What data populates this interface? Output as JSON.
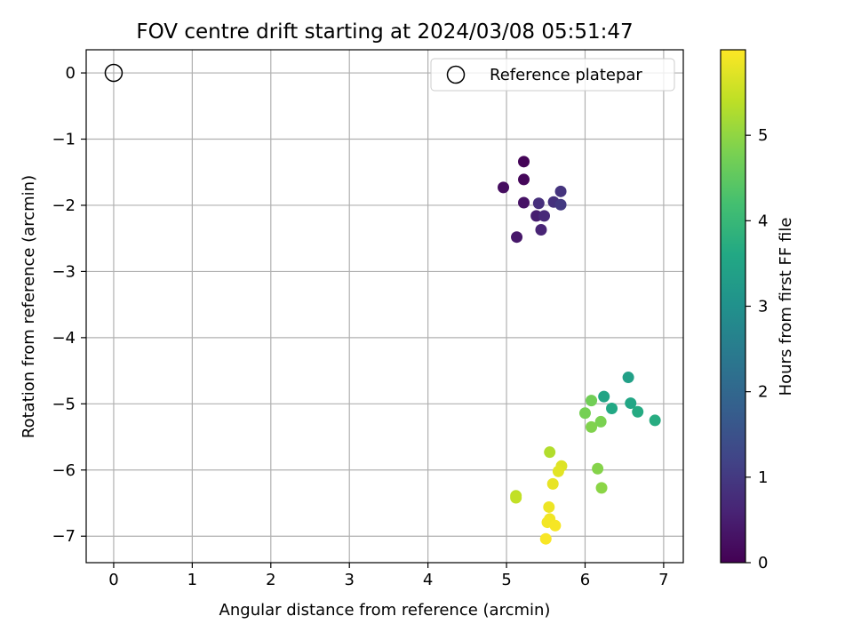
{
  "chart_data": {
    "type": "scatter",
    "title": "FOV centre drift starting at 2024/03/08 05:51:47",
    "xlabel": "Angular distance from reference (arcmin)",
    "ylabel": "Rotation from reference (arcmin)",
    "xlim": [
      -0.35,
      7.25
    ],
    "ylim": [
      -7.4,
      0.35
    ],
    "xticks": [
      0,
      1,
      2,
      3,
      4,
      5,
      6,
      7
    ],
    "yticks": [
      0,
      -1,
      -2,
      -3,
      -4,
      -5,
      -6,
      -7
    ],
    "grid": true,
    "legend": {
      "position": "top-right",
      "entries": [
        "Reference platepar"
      ]
    },
    "reference_point": {
      "name": "Reference platepar",
      "x": 0,
      "y": 0,
      "marker": "open-circle"
    },
    "colorbar": {
      "label": "Hours from first FF file",
      "colormap": "viridis",
      "range": [
        0,
        6.0
      ],
      "ticks": [
        0,
        1,
        2,
        3,
        4,
        5
      ]
    },
    "series": [
      {
        "points": [
          {
            "x": 5.22,
            "y": -1.34,
            "c": 0.05
          },
          {
            "x": 5.22,
            "y": -1.61,
            "c": 0.1
          },
          {
            "x": 4.96,
            "y": -1.73,
            "c": 0.2
          },
          {
            "x": 5.22,
            "y": -1.96,
            "c": 0.3
          },
          {
            "x": 5.13,
            "y": -2.48,
            "c": 0.4
          },
          {
            "x": 5.38,
            "y": -2.16,
            "c": 0.5
          },
          {
            "x": 5.44,
            "y": -2.37,
            "c": 0.6
          },
          {
            "x": 5.48,
            "y": -2.16,
            "c": 0.7
          },
          {
            "x": 5.41,
            "y": -1.97,
            "c": 0.8
          },
          {
            "x": 5.6,
            "y": -1.95,
            "c": 0.85
          },
          {
            "x": 5.69,
            "y": -1.79,
            "c": 0.9
          },
          {
            "x": 5.69,
            "y": -1.99,
            "c": 1.0
          },
          {
            "x": 6.55,
            "y": -4.6,
            "c": 3.4
          },
          {
            "x": 6.24,
            "y": -4.89,
            "c": 3.5
          },
          {
            "x": 6.58,
            "y": -4.99,
            "c": 3.55
          },
          {
            "x": 6.34,
            "y": -5.07,
            "c": 3.6
          },
          {
            "x": 6.67,
            "y": -5.12,
            "c": 3.65
          },
          {
            "x": 6.89,
            "y": -5.25,
            "c": 3.7
          },
          {
            "x": 6.08,
            "y": -4.95,
            "c": 4.7
          },
          {
            "x": 6.0,
            "y": -5.14,
            "c": 4.75
          },
          {
            "x": 6.2,
            "y": -5.27,
            "c": 4.8
          },
          {
            "x": 6.08,
            "y": -5.35,
            "c": 4.85
          },
          {
            "x": 6.16,
            "y": -5.98,
            "c": 4.9
          },
          {
            "x": 6.21,
            "y": -6.27,
            "c": 4.95
          },
          {
            "x": 5.55,
            "y": -5.73,
            "c": 5.3
          },
          {
            "x": 5.12,
            "y": -6.39,
            "c": 5.4
          },
          {
            "x": 5.12,
            "y": -6.42,
            "c": 5.45
          },
          {
            "x": 5.7,
            "y": -5.94,
            "c": 5.7
          },
          {
            "x": 5.66,
            "y": -6.02,
            "c": 5.75
          },
          {
            "x": 5.59,
            "y": -6.21,
            "c": 5.8
          },
          {
            "x": 5.54,
            "y": -6.56,
            "c": 5.85
          },
          {
            "x": 5.55,
            "y": -6.74,
            "c": 5.88
          },
          {
            "x": 5.52,
            "y": -6.79,
            "c": 5.9
          },
          {
            "x": 5.62,
            "y": -6.84,
            "c": 5.93
          },
          {
            "x": 5.5,
            "y": -7.04,
            "c": 5.95
          }
        ]
      }
    ]
  }
}
